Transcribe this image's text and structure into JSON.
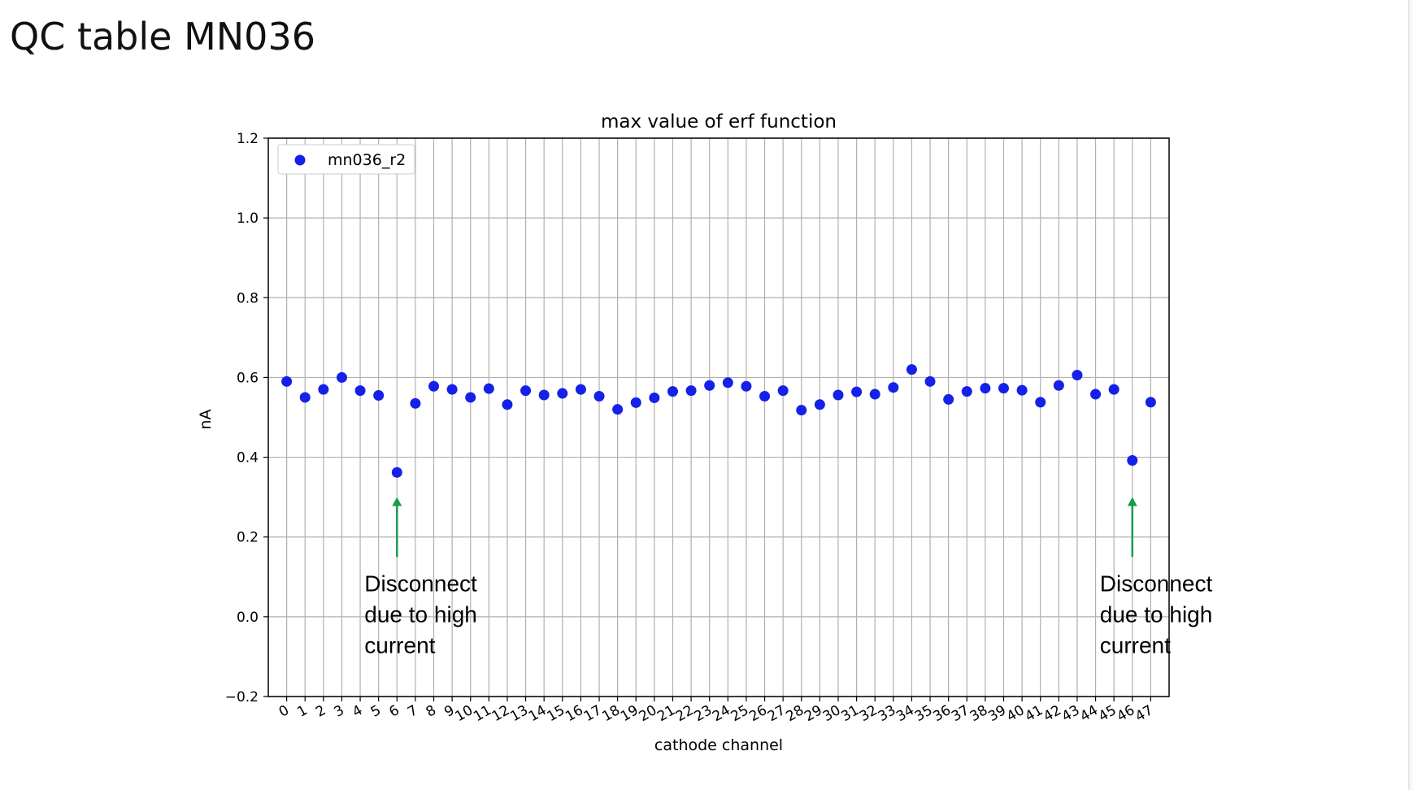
{
  "page": {
    "title": "QC table MN036"
  },
  "chart_data": {
    "type": "scatter",
    "title": "max value of erf function",
    "xlabel": "cathode channel",
    "ylabel": "nA",
    "xlim": [
      -1,
      48
    ],
    "ylim": [
      -0.2,
      1.2
    ],
    "x": [
      0,
      1,
      2,
      3,
      4,
      5,
      6,
      7,
      8,
      9,
      10,
      11,
      12,
      13,
      14,
      15,
      16,
      17,
      18,
      19,
      20,
      21,
      22,
      23,
      24,
      25,
      26,
      27,
      28,
      29,
      30,
      31,
      32,
      33,
      34,
      35,
      36,
      37,
      38,
      39,
      40,
      41,
      42,
      43,
      44,
      45,
      46,
      47
    ],
    "x_tick_labels": [
      "0",
      "1",
      "2",
      "3",
      "4",
      "5",
      "6",
      "7",
      "8",
      "9",
      "10",
      "11",
      "12",
      "13",
      "14",
      "15",
      "16",
      "17",
      "18",
      "19",
      "20",
      "21",
      "22",
      "23",
      "24",
      "25",
      "26",
      "27",
      "28",
      "29",
      "30",
      "31",
      "32",
      "33",
      "34",
      "35",
      "36",
      "37",
      "38",
      "39",
      "40",
      "41",
      "42",
      "43",
      "44",
      "45",
      "46",
      "47"
    ],
    "y_ticks": [
      -0.2,
      0.0,
      0.2,
      0.4,
      0.6,
      0.8,
      1.0,
      1.2
    ],
    "y_tick_labels": [
      "−0.2",
      "0.0",
      "0.2",
      "0.4",
      "0.6",
      "0.8",
      "1.0",
      "1.2"
    ],
    "grid": true,
    "legend_position": "top-left",
    "series": [
      {
        "name": "mn036_r2",
        "color": "#1520e8",
        "values": [
          0.59,
          0.55,
          0.57,
          0.6,
          0.567,
          0.555,
          0.362,
          0.535,
          0.578,
          0.57,
          0.55,
          0.572,
          0.532,
          0.567,
          0.556,
          0.56,
          0.57,
          0.553,
          0.52,
          0.537,
          0.549,
          0.565,
          0.567,
          0.58,
          0.587,
          0.578,
          0.553,
          0.567,
          0.518,
          0.532,
          0.556,
          0.564,
          0.558,
          0.575,
          0.62,
          0.59,
          0.545,
          0.565,
          0.573,
          0.573,
          0.568,
          0.538,
          0.58,
          0.606,
          0.558,
          0.57,
          0.392,
          0.538
        ]
      }
    ],
    "annotations": [
      {
        "text_lines": [
          "Disconnect",
          "due to high",
          "current"
        ],
        "arrow_x": 6,
        "arrow_from_y": 0.15,
        "arrow_to_y": 0.3,
        "arrow_color": "#1a9c50"
      },
      {
        "text_lines": [
          "Disconnect",
          "due to high",
          "current"
        ],
        "arrow_x": 46,
        "arrow_from_y": 0.15,
        "arrow_to_y": 0.3,
        "arrow_color": "#1a9c50"
      }
    ]
  }
}
